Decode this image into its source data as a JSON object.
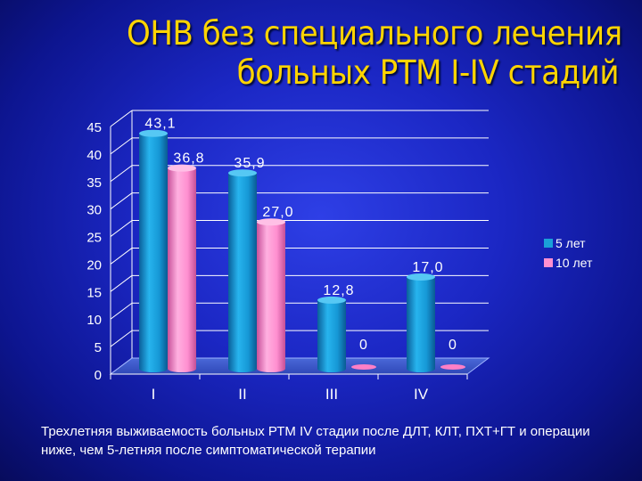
{
  "title_line1": "ОНВ без специального лечения",
  "title_line2": "больных РТМ I-IV стадий",
  "caption": "Трехлетняя выживаемость больных РТМ IV стадии после ДЛТ, КЛТ, ПХТ+ГТ и операции ниже, чем 5-летняя после симптоматической терапии",
  "colors": {
    "series1": "#1aa0d8",
    "series2": "#ff8fd0",
    "title": "#ffd400"
  },
  "chart_data": {
    "type": "bar",
    "categories": [
      "I",
      "II",
      "III",
      "IV"
    ],
    "ylim": [
      0,
      45
    ],
    "yticks": [
      0,
      5,
      10,
      15,
      20,
      25,
      30,
      35,
      40,
      45
    ],
    "grid": true,
    "legend_position": "right",
    "series": [
      {
        "name": "5 лет",
        "values": [
          43.1,
          35.9,
          12.8,
          17.0
        ],
        "labels": [
          "43,1",
          "35,9",
          "12,8",
          "17,0"
        ]
      },
      {
        "name": "10 лет",
        "values": [
          36.8,
          27.0,
          0,
          0
        ],
        "labels": [
          "36,8",
          "27,0",
          "0",
          "0"
        ]
      }
    ]
  }
}
